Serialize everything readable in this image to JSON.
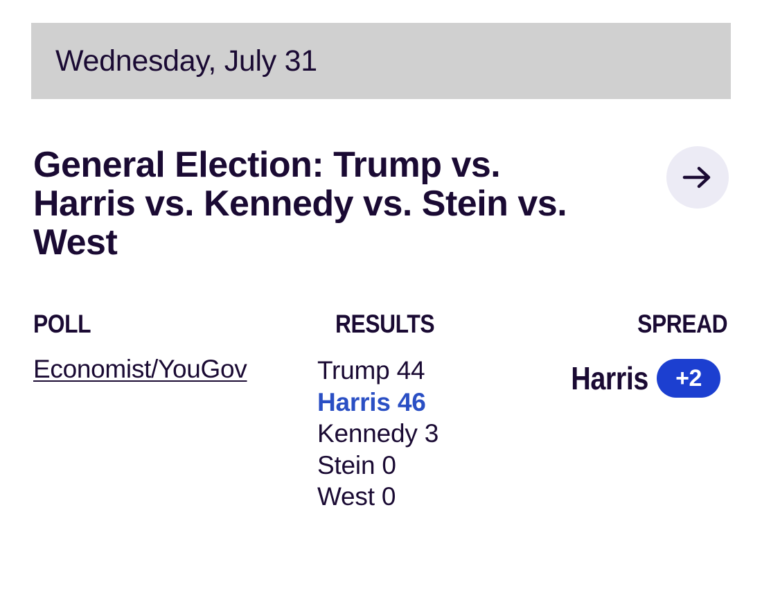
{
  "date_header": "Wednesday, July 31",
  "race": {
    "title": "General Election: Trump vs. Harris vs. Kennedy vs. Stein vs. West",
    "link_icon": "arrow-right-icon"
  },
  "columns": {
    "poll": "POLL",
    "results": "RESULTS",
    "spread": "SPREAD"
  },
  "poll": {
    "name": "Economist/YouGov"
  },
  "results": [
    {
      "text": "Trump 44",
      "candidate": "Trump",
      "value": 44,
      "leader": false
    },
    {
      "text": "Harris 46",
      "candidate": "Harris",
      "value": 46,
      "leader": true
    },
    {
      "text": "Kennedy 3",
      "candidate": "Kennedy",
      "value": 3,
      "leader": false
    },
    {
      "text": "Stein 0",
      "candidate": "Stein",
      "value": 0,
      "leader": false
    },
    {
      "text": "West 0",
      "candidate": "West",
      "value": 0,
      "leader": false
    }
  ],
  "spread": {
    "leader": "Harris",
    "margin": "+2"
  },
  "colors": {
    "text": "#1a0a33",
    "leader_text": "#2a4fc4",
    "badge_bg": "#1c3fd0",
    "date_bar_bg": "#d0d0d0",
    "arrow_button_bg": "#ecebf5"
  }
}
